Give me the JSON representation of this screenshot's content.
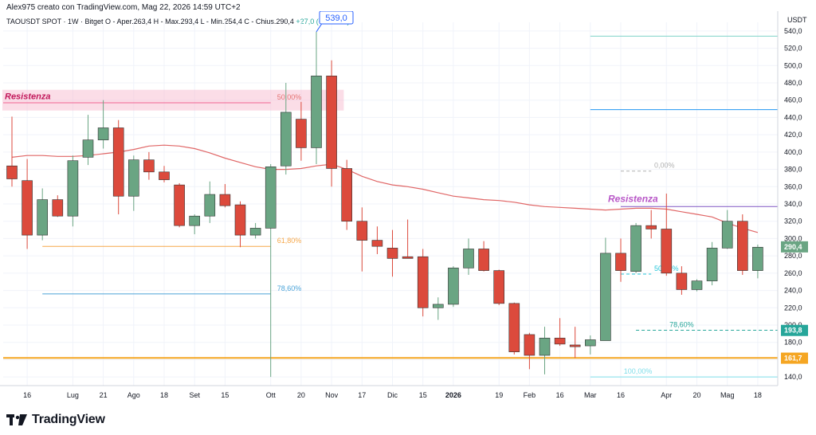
{
  "header": {
    "author_line": "Alex975 creato con TradingView.com, Mag 22, 2026 14:59 UTC+2",
    "currency": "USDT"
  },
  "symbol": {
    "name": "TAOUSDT SPOT · 1W · Bitget",
    "open": "O - Aper.263,4",
    "high": "H - Max.293,4",
    "low": "L - Min.254,4",
    "close": "C - Chius.290,4",
    "change": "+27,0 (+10,25%)"
  },
  "footer": {
    "brand": "TradingView"
  },
  "colors": {
    "up": "#6aa583",
    "down": "#dc4a3c",
    "ma": "#e06666",
    "fib_orange": "#f6a84a",
    "fib_blue": "#4aa3d8",
    "resist_purple": "#b857c7",
    "hline_blue": "#2196f3",
    "support_orange": "#f5a623"
  },
  "chart_data": {
    "type": "candlestick",
    "timeframe": "1W",
    "ylim": [
      130,
      550
    ],
    "y_ticks": [
      "540,0",
      "520,0",
      "500,0",
      "480,0",
      "460,0",
      "440,0",
      "420,0",
      "400,0",
      "380,0",
      "360,0",
      "340,0",
      "320,0",
      "300,0",
      "280,0",
      "260,0",
      "240,0",
      "220,0",
      "200,0",
      "180,0",
      "160,0",
      "140,0"
    ],
    "y_tick_values": [
      540,
      520,
      500,
      480,
      460,
      440,
      420,
      400,
      380,
      360,
      340,
      320,
      300,
      280,
      260,
      240,
      220,
      200,
      180,
      160,
      140
    ],
    "x_labels": [
      {
        "label": "16",
        "idx": 1
      },
      {
        "label": "Lug",
        "idx": 4
      },
      {
        "label": "21",
        "idx": 6
      },
      {
        "label": "Ago",
        "idx": 8
      },
      {
        "label": "18",
        "idx": 10
      },
      {
        "label": "Set",
        "idx": 12
      },
      {
        "label": "15",
        "idx": 14
      },
      {
        "label": "Ott",
        "idx": 17
      },
      {
        "label": "20",
        "idx": 19
      },
      {
        "label": "Nov",
        "idx": 21
      },
      {
        "label": "17",
        "idx": 23
      },
      {
        "label": "Dic",
        "idx": 25
      },
      {
        "label": "15",
        "idx": 27
      },
      {
        "label": "2026",
        "idx": 29
      },
      {
        "label": "19",
        "idx": 32
      },
      {
        "label": "Feb",
        "idx": 34
      },
      {
        "label": "16",
        "idx": 36
      },
      {
        "label": "Mar",
        "idx": 38
      },
      {
        "label": "16",
        "idx": 40
      },
      {
        "label": "Apr",
        "idx": 43
      },
      {
        "label": "20",
        "idx": 45
      },
      {
        "label": "Mag",
        "idx": 47
      },
      {
        "label": "18",
        "idx": 49
      }
    ],
    "candles": [
      {
        "o": 384,
        "h": 441,
        "l": 360,
        "c": 369
      },
      {
        "o": 367,
        "h": 392,
        "l": 288,
        "c": 304
      },
      {
        "o": 304,
        "h": 358,
        "l": 298,
        "c": 345
      },
      {
        "o": 345,
        "h": 350,
        "l": 325,
        "c": 326
      },
      {
        "o": 326,
        "h": 396,
        "l": 314,
        "c": 390
      },
      {
        "o": 394,
        "h": 443,
        "l": 385,
        "c": 414
      },
      {
        "o": 414,
        "h": 460,
        "l": 404,
        "c": 428
      },
      {
        "o": 428,
        "h": 437,
        "l": 328,
        "c": 349
      },
      {
        "o": 349,
        "h": 396,
        "l": 332,
        "c": 391
      },
      {
        "o": 391,
        "h": 400,
        "l": 368,
        "c": 377
      },
      {
        "o": 377,
        "h": 384,
        "l": 365,
        "c": 368
      },
      {
        "o": 362,
        "h": 364,
        "l": 313,
        "c": 315
      },
      {
        "o": 315,
        "h": 328,
        "l": 305,
        "c": 326
      },
      {
        "o": 326,
        "h": 366,
        "l": 318,
        "c": 351
      },
      {
        "o": 351,
        "h": 363,
        "l": 336,
        "c": 338
      },
      {
        "o": 339,
        "h": 343,
        "l": 290,
        "c": 304
      },
      {
        "o": 304,
        "h": 318,
        "l": 300,
        "c": 312
      },
      {
        "o": 312,
        "h": 386,
        "l": 140,
        "c": 383
      },
      {
        "o": 384,
        "h": 480,
        "l": 374,
        "c": 446
      },
      {
        "o": 438,
        "h": 458,
        "l": 390,
        "c": 405
      },
      {
        "o": 405,
        "h": 539,
        "l": 386,
        "c": 488
      },
      {
        "o": 488,
        "h": 506,
        "l": 360,
        "c": 381
      },
      {
        "o": 381,
        "h": 391,
        "l": 310,
        "c": 320
      },
      {
        "o": 320,
        "h": 336,
        "l": 262,
        "c": 298
      },
      {
        "o": 298,
        "h": 314,
        "l": 282,
        "c": 291
      },
      {
        "o": 289,
        "h": 310,
        "l": 256,
        "c": 277
      },
      {
        "o": 279,
        "h": 322,
        "l": 277,
        "c": 277
      },
      {
        "o": 279,
        "h": 288,
        "l": 210,
        "c": 220
      },
      {
        "o": 220,
        "h": 232,
        "l": 206,
        "c": 224
      },
      {
        "o": 224,
        "h": 268,
        "l": 221,
        "c": 266
      },
      {
        "o": 266,
        "h": 300,
        "l": 258,
        "c": 288
      },
      {
        "o": 288,
        "h": 297,
        "l": 262,
        "c": 263
      },
      {
        "o": 263,
        "h": 264,
        "l": 223,
        "c": 225
      },
      {
        "o": 225,
        "h": 226,
        "l": 166,
        "c": 169
      },
      {
        "o": 189,
        "h": 191,
        "l": 149,
        "c": 165
      },
      {
        "o": 165,
        "h": 198,
        "l": 143,
        "c": 185
      },
      {
        "o": 185,
        "h": 208,
        "l": 176,
        "c": 178
      },
      {
        "o": 177,
        "h": 198,
        "l": 162,
        "c": 175
      },
      {
        "o": 176,
        "h": 188,
        "l": 166,
        "c": 183
      },
      {
        "o": 182,
        "h": 301,
        "l": 182,
        "c": 283
      },
      {
        "o": 283,
        "h": 300,
        "l": 250,
        "c": 263
      },
      {
        "o": 262,
        "h": 318,
        "l": 260,
        "c": 315
      },
      {
        "o": 315,
        "h": 333,
        "l": 300,
        "c": 311
      },
      {
        "o": 311,
        "h": 352,
        "l": 257,
        "c": 260
      },
      {
        "o": 260,
        "h": 268,
        "l": 235,
        "c": 241
      },
      {
        "o": 241,
        "h": 253,
        "l": 239,
        "c": 251
      },
      {
        "o": 251,
        "h": 296,
        "l": 246,
        "c": 289
      },
      {
        "o": 289,
        "h": 333,
        "l": 288,
        "c": 320
      },
      {
        "o": 320,
        "h": 328,
        "l": 258,
        "c": 263
      },
      {
        "o": 263,
        "h": 293,
        "l": 254,
        "c": 290
      }
    ],
    "ma": {
      "name": "MA",
      "start_idx": 0,
      "values": [
        394,
        396,
        396,
        395,
        395,
        396,
        398,
        400,
        403,
        407,
        408,
        407,
        404,
        399,
        393,
        388,
        383,
        380,
        380,
        381,
        384,
        386,
        380,
        372,
        366,
        362,
        360,
        357,
        353,
        349,
        347,
        345,
        344,
        342,
        339,
        337,
        336,
        335,
        334,
        333,
        334,
        335,
        335,
        334,
        331,
        328,
        325,
        318,
        312,
        307
      ]
    },
    "horizontal_lines": [
      {
        "price": 457,
        "from_idx": 0,
        "to_idx": 17,
        "color": "#f06292",
        "label": "50,00%",
        "label_color": "#e57373"
      },
      {
        "price": 291,
        "from_idx": 2,
        "to_idx": 17,
        "color": "#f6a84a",
        "label": "61,80%",
        "label_color": "#f6a84a"
      },
      {
        "price": 236,
        "from_idx": 2,
        "to_idx": 17,
        "color": "#4aa3d8",
        "label": "78,60%",
        "label_color": "#4aa3d8"
      },
      {
        "price": 534,
        "from_idx": 38,
        "to_idx": 51,
        "color": "#7fd3c8",
        "label": "",
        "label_color": "#7fd3c8"
      },
      {
        "price": 449,
        "from_idx": 38,
        "to_idx": 51,
        "color": "#2196f3",
        "label": "",
        "label_color": "#2196f3"
      },
      {
        "price": 337,
        "from_idx": 40,
        "to_idx": 51,
        "color": "#7e57c2",
        "label": "Resistenza",
        "label_color": "#b857c7"
      },
      {
        "price": 378,
        "from_idx": 40,
        "to_idx": 42,
        "color": "#b0b0b0",
        "label": "0,00%",
        "label_color": "#b0b0b0",
        "dashed": true
      },
      {
        "price": 259,
        "from_idx": 40,
        "to_idx": 42,
        "color": "#26c6da",
        "label": "50,00%",
        "label_color": "#26c6da",
        "dashed": true
      },
      {
        "price": 194,
        "from_idx": 41,
        "to_idx": 51,
        "color": "#26a69a",
        "label": "78,60%",
        "label_color": "#26a69a",
        "dashed": true
      },
      {
        "price": 140,
        "from_idx": 38,
        "to_idx": 51,
        "color": "#80deea",
        "label": "100,00%",
        "label_color": "#80deea"
      },
      {
        "price": 162,
        "from_idx": 0,
        "to_idx": 51,
        "color": "#f5a623",
        "label": "",
        "label_color": "#f5a623",
        "thick": true
      }
    ],
    "zones": [
      {
        "label": "Resistenza",
        "from_price": 448,
        "to_price": 472,
        "from_idx": 0,
        "to_idx": 21.8,
        "color": "#f8bbd0"
      }
    ],
    "annotations": [
      {
        "text": "539,0",
        "price": 539,
        "idx": 20
      }
    ],
    "price_badges": [
      {
        "text": "290,4",
        "price": 290.4,
        "color": "#6aa583"
      },
      {
        "text": "193,8",
        "price": 193.8,
        "color": "#26a69a"
      },
      {
        "text": "161,7",
        "price": 161.7,
        "color": "#f5a623"
      }
    ]
  }
}
